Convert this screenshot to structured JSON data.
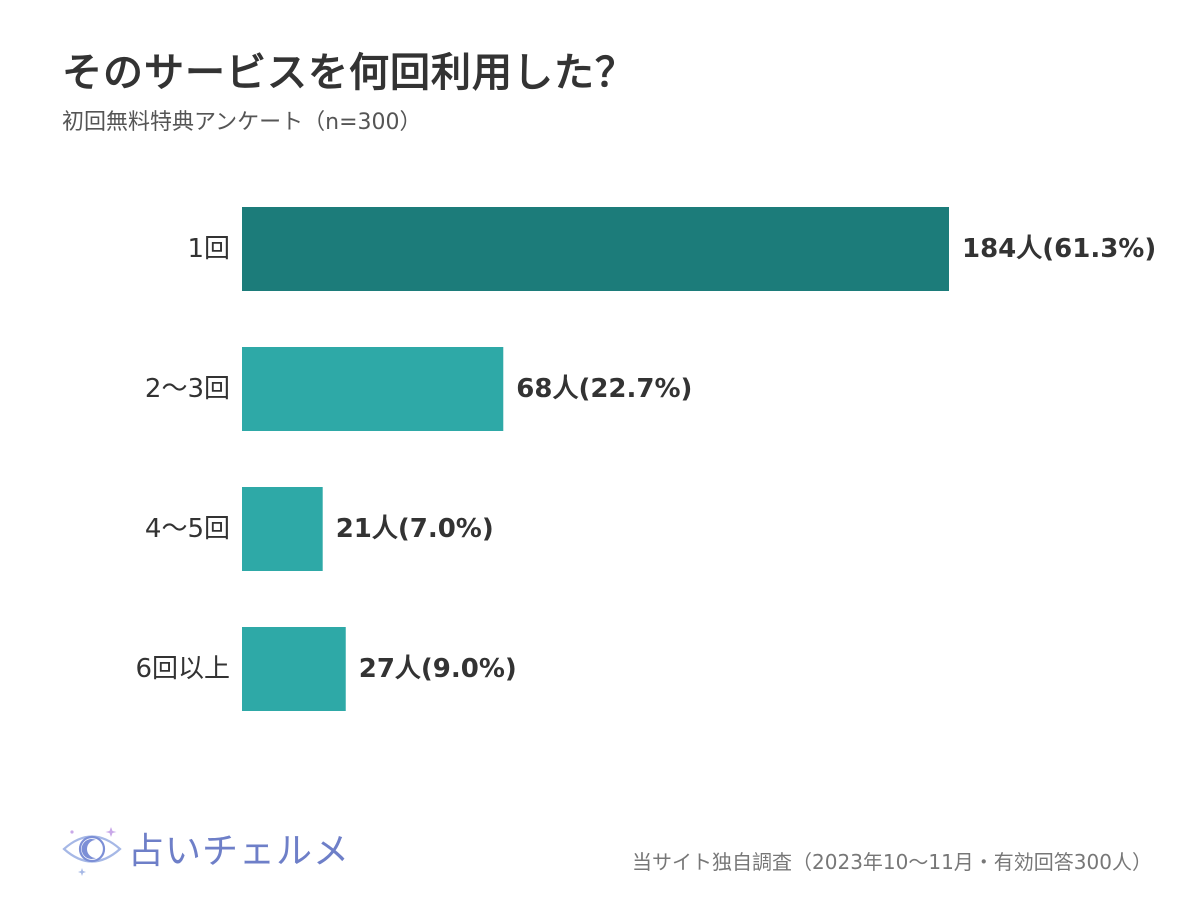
{
  "title": "そのサービスを何回利用した？",
  "subtitle": "初回無料特典アンケート（n=300）",
  "source": "当サイト独自調査（2023年10～11月・有効回答300人）",
  "logo": {
    "text": "占いチェルメ",
    "icon": "eye-moon-icon"
  },
  "colors": {
    "highlight": "#1c7c7a",
    "bar": "#2ea9a7",
    "text": "#333333"
  },
  "chart_data": {
    "type": "bar",
    "orientation": "horizontal",
    "categories": [
      "1回",
      "2～3回",
      "4～5回",
      "6回以上"
    ],
    "values": [
      184,
      68,
      21,
      27
    ],
    "percentages": [
      61.3,
      22.7,
      7.0,
      9.0
    ],
    "value_labels": [
      "184人(61.3%)",
      "68人(22.7%)",
      "21人(7.0%)",
      "27人(9.0%)"
    ],
    "highlight_index": 0,
    "xlim": [
      0,
      184
    ],
    "grid": false,
    "legend": "none"
  }
}
